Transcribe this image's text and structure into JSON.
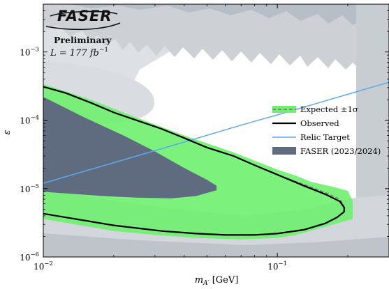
{
  "chart_data": {
    "type": "line",
    "xlabel": "m_{A'} [GeV]",
    "ylabel": "ε",
    "x_scale": "log",
    "y_scale": "log",
    "xlim": [
      0.01,
      0.3
    ],
    "ylim": [
      1e-06,
      0.005
    ],
    "x_ticks": [
      {
        "value": 0.01,
        "label": "10",
        "exp": "−2"
      },
      {
        "value": 0.1,
        "label": "10",
        "exp": "−1"
      }
    ],
    "y_ticks": [
      {
        "value": 1e-06,
        "label": "10",
        "exp": "−6"
      },
      {
        "value": 1e-05,
        "label": "10",
        "exp": "−5"
      },
      {
        "value": 0.0001,
        "label": "10",
        "exp": "−4"
      },
      {
        "value": 0.001,
        "label": "10",
        "exp": "−3"
      }
    ],
    "experiment": {
      "logo": "FASER",
      "status": "Preliminary",
      "luminosity_prefix": "L = 177 fb",
      "luminosity_exp": "−1"
    },
    "legend": [
      {
        "label": "Expected ±1σ",
        "style": "band-dashed",
        "color": "#6ef06e"
      },
      {
        "label": "Observed",
        "style": "line",
        "color": "#000000"
      },
      {
        "label": "Relic Target",
        "style": "line",
        "color": "#5ea9ea"
      },
      {
        "label": "FASER (2023/2024)",
        "style": "fill",
        "color": "#5f6b7e"
      }
    ],
    "legend_position": "right",
    "series": [
      {
        "name": "Observed",
        "upper": [
          [
            0.01,
            0.00031
          ],
          [
            0.0125,
            0.00025
          ],
          [
            0.016,
            0.00018
          ],
          [
            0.02,
            0.00013
          ],
          [
            0.025,
            0.0001
          ],
          [
            0.032,
            7.5e-05
          ],
          [
            0.04,
            5.5e-05
          ],
          [
            0.05,
            4e-05
          ],
          [
            0.065,
            3e-05
          ],
          [
            0.08,
            2.2e-05
          ],
          [
            0.1,
            1.6e-05
          ],
          [
            0.13,
            1.1e-05
          ],
          [
            0.16,
            8.3e-06
          ],
          [
            0.185,
            6.5e-06
          ],
          [
            0.193,
            5.3e-06
          ]
        ],
        "lower": [
          [
            0.193,
            4.6e-06
          ],
          [
            0.18,
            3.8e-06
          ],
          [
            0.16,
            3.1e-06
          ],
          [
            0.13,
            2.5e-06
          ],
          [
            0.1,
            2.2e-06
          ],
          [
            0.08,
            2.1e-06
          ],
          [
            0.06,
            2.1e-06
          ],
          [
            0.045,
            2.2e-06
          ],
          [
            0.032,
            2.4e-06
          ],
          [
            0.02,
            2.9e-06
          ],
          [
            0.01,
            4.3e-06
          ]
        ]
      },
      {
        "name": "Expected",
        "upper": [
          [
            0.01,
            0.00031
          ],
          [
            0.0125,
            0.00025
          ],
          [
            0.016,
            0.00018
          ],
          [
            0.02,
            0.00013
          ],
          [
            0.025,
            0.0001
          ],
          [
            0.032,
            7.5e-05
          ],
          [
            0.04,
            5.5e-05
          ],
          [
            0.05,
            4e-05
          ],
          [
            0.065,
            3e-05
          ],
          [
            0.08,
            2.2e-05
          ],
          [
            0.1,
            1.6e-05
          ],
          [
            0.13,
            1.15e-05
          ],
          [
            0.16,
            8.8e-06
          ],
          [
            0.185,
            7e-06
          ],
          [
            0.192,
            5.8e-06
          ]
        ],
        "lower": [
          [
            0.192,
            4.5e-06
          ],
          [
            0.18,
            3.8e-06
          ],
          [
            0.16,
            3.1e-06
          ],
          [
            0.13,
            2.5e-06
          ],
          [
            0.1,
            2.2e-06
          ],
          [
            0.08,
            2.1e-06
          ],
          [
            0.06,
            2.1e-06
          ],
          [
            0.045,
            2.2e-06
          ],
          [
            0.032,
            2.4e-06
          ],
          [
            0.02,
            2.9e-06
          ],
          [
            0.01,
            4.3e-06
          ]
        ],
        "band_upper_outer": [
          [
            0.01,
            0.00034
          ],
          [
            0.016,
            0.0002
          ],
          [
            0.025,
            0.00011
          ],
          [
            0.04,
            6e-05
          ],
          [
            0.065,
            3.4e-05
          ],
          [
            0.1,
            1.9e-05
          ],
          [
            0.12,
            1.55e-05
          ],
          [
            0.14,
            1.25e-05
          ],
          [
            0.17,
            1.08e-05
          ],
          [
            0.2,
            9.3e-06
          ],
          [
            0.21,
            6.5e-06
          ]
        ],
        "band_lower_outer": [
          [
            0.21,
            3.6e-06
          ],
          [
            0.18,
            3.1e-06
          ],
          [
            0.15,
            2.6e-06
          ],
          [
            0.12,
            2.1e-06
          ],
          [
            0.1,
            1.9e-06
          ],
          [
            0.07,
            1.8e-06
          ],
          [
            0.045,
            1.9e-06
          ],
          [
            0.03,
            2.1e-06
          ],
          [
            0.02,
            2.4e-06
          ],
          [
            0.01,
            3.6e-06
          ]
        ]
      },
      {
        "name": "Relic Target",
        "points": [
          [
            0.01,
            1.2e-05
          ],
          [
            0.02,
            2.4e-05
          ],
          [
            0.04,
            4.8e-05
          ],
          [
            0.07,
            8.5e-05
          ],
          [
            0.1,
            0.00012
          ],
          [
            0.15,
            0.00018
          ],
          [
            0.2,
            0.00024
          ],
          [
            0.3,
            0.00036
          ]
        ]
      },
      {
        "name": "FASER (2023/2024)",
        "upper": [
          [
            0.01,
            0.00022
          ],
          [
            0.015,
            0.00011
          ],
          [
            0.022,
            6e-05
          ],
          [
            0.03,
            3.5e-05
          ],
          [
            0.04,
            2e-05
          ],
          [
            0.05,
            1.35e-05
          ],
          [
            0.055,
            1.1e-05
          ]
        ],
        "lower": [
          [
            0.055,
            9.5e-06
          ],
          [
            0.045,
            7.8e-06
          ],
          [
            0.035,
            7.2e-06
          ],
          [
            0.025,
            7.4e-06
          ],
          [
            0.018,
            7.8e-06
          ],
          [
            0.01,
            9e-06
          ]
        ]
      }
    ],
    "excluded_regions_colors": [
      "#d7dbe0",
      "#c3c8ce",
      "#b4bac1"
    ]
  }
}
